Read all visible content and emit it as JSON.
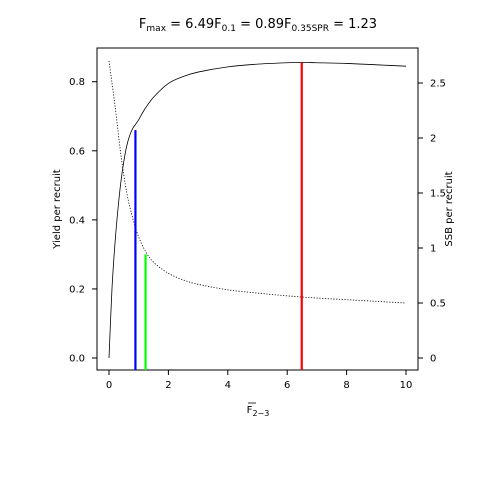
{
  "chart_data": {
    "type": "line",
    "title_parts": [
      {
        "main": "F",
        "sub": "max",
        "eq": " = 6.49"
      },
      {
        "main": "F",
        "sub": "0.1",
        "eq": " = 0.89"
      },
      {
        "main": "F",
        "sub": "0.35SPR",
        "eq": " = 1.23"
      }
    ],
    "xlabel": {
      "main": "F",
      "sub": "2−3",
      "overline": true
    },
    "ylabel_left": "Yield per recruit",
    "ylabel_right": "SSB per recruit",
    "xlim": [
      0,
      10
    ],
    "ylim_left": [
      0,
      0.86
    ],
    "ylim_right": [
      0,
      2.7
    ],
    "x_ticks": [
      0,
      2,
      4,
      6,
      8,
      10
    ],
    "y_left_ticks": [
      0.0,
      0.2,
      0.4,
      0.6,
      0.8
    ],
    "y_left_tick_labels": [
      "0.0",
      "0.2",
      "0.4",
      "0.6",
      "0.8"
    ],
    "y_right_ticks": [
      0,
      0.5,
      1,
      1.5,
      2,
      2.5
    ],
    "y_right_tick_labels": [
      "0",
      "0.5",
      "1",
      "1.5",
      "2",
      "2.5"
    ],
    "series": [
      {
        "axis": "left",
        "style": "solid",
        "x": [
          0,
          0.1,
          0.2,
          0.3,
          0.4,
          0.5,
          0.6,
          0.7,
          0.8,
          0.89,
          1.0,
          1.2,
          1.5,
          2.0,
          2.5,
          3.0,
          4.0,
          5.0,
          6.0,
          6.49,
          7.0,
          8.0,
          9.0,
          10.0
        ],
        "y": [
          0,
          0.2,
          0.33,
          0.43,
          0.51,
          0.57,
          0.615,
          0.645,
          0.665,
          0.676,
          0.69,
          0.72,
          0.755,
          0.795,
          0.815,
          0.828,
          0.843,
          0.851,
          0.855,
          0.856,
          0.855,
          0.853,
          0.849,
          0.845
        ]
      },
      {
        "axis": "right",
        "style": "dotted",
        "x": [
          0,
          0.2,
          0.4,
          0.6,
          0.8,
          1.0,
          1.23,
          1.5,
          2.0,
          2.5,
          3.0,
          4.0,
          5.0,
          6.0,
          7.0,
          8.0,
          9.0,
          10.0
        ],
        "y": [
          2.7,
          2.3,
          1.85,
          1.5,
          1.27,
          1.1,
          0.97,
          0.87,
          0.77,
          0.71,
          0.67,
          0.62,
          0.59,
          0.565,
          0.545,
          0.53,
          0.515,
          0.5
        ]
      }
    ],
    "reference_lines": [
      {
        "x": 0.89,
        "y_top": 0.66,
        "axis": "left",
        "color": "#0000ff"
      },
      {
        "x": 1.23,
        "y_top": 0.3,
        "axis": "left",
        "color": "#00ff00"
      },
      {
        "x": 6.49,
        "y_top": 0.856,
        "axis": "left",
        "color": "#ff0000"
      }
    ]
  }
}
